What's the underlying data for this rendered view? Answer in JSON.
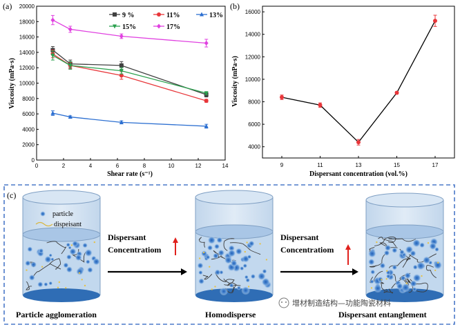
{
  "chart_data": [
    {
      "panel_label": "(a)",
      "type": "line",
      "xlabel": "Shear rate (s⁻¹)",
      "ylabel": "Viscosity (mPa·s)",
      "xlim": [
        0,
        14
      ],
      "ylim": [
        0,
        20000
      ],
      "x_ticks": [
        "0",
        "2",
        "4",
        "6",
        "8",
        "10",
        "12",
        "14"
      ],
      "y_ticks": [
        "0",
        "2000",
        "4000",
        "6000",
        "8000",
        "10000",
        "12000",
        "14000",
        "16000",
        "18000",
        "20000"
      ],
      "x": [
        1.2,
        2.5,
        6.3,
        12.6
      ],
      "series": [
        {
          "name": "9 %",
          "color": "#404040",
          "marker": "square",
          "values": [
            14300,
            12500,
            12300,
            8500
          ],
          "errors": [
            450,
            500,
            500,
            300
          ]
        },
        {
          "name": "11%",
          "color": "#e8363a",
          "marker": "circle",
          "values": [
            13800,
            12300,
            11000,
            7700
          ],
          "errors": [
            500,
            400,
            500,
            200
          ]
        },
        {
          "name": "13%",
          "color": "#2c6fd1",
          "marker": "triangle",
          "values": [
            6100,
            5600,
            4900,
            4400
          ],
          "errors": [
            300,
            150,
            200,
            250
          ]
        },
        {
          "name": "15%",
          "color": "#2aa04d",
          "marker": "triangle-down",
          "values": [
            13600,
            12300,
            11600,
            8700
          ],
          "errors": [
            600,
            500,
            400,
            200
          ]
        },
        {
          "name": "17%",
          "color": "#e040e0",
          "marker": "diamond",
          "values": [
            18200,
            17000,
            16100,
            15200
          ],
          "errors": [
            600,
            400,
            300,
            500
          ]
        }
      ]
    },
    {
      "panel_label": "(b)",
      "type": "line",
      "xlabel": "Dispersant concentration (vol.%)",
      "ylabel": "Viscosity (mPa·s)",
      "ylim": [
        3000,
        16500
      ],
      "categories": [
        "9",
        "11",
        "13",
        "15",
        "17"
      ],
      "y_ticks": [
        "4000",
        "6000",
        "8000",
        "10000",
        "12000",
        "14000",
        "16000"
      ],
      "values": [
        8400,
        7700,
        4400,
        8800,
        15200
      ],
      "errors": [
        200,
        200,
        250,
        100,
        500
      ],
      "line_color": "#000000",
      "marker_color": "#e8363a"
    }
  ],
  "panel_c": {
    "label": "(c)",
    "legend_particle": "particle",
    "legend_dispersant": "dispeisant",
    "arrow1_line1": "Dispersant",
    "arrow1_line2": "Concentratiom",
    "arrow2_line1": "Dispersant",
    "arrow2_line2": "Concentratiom",
    "state1": "Particle agglomeration",
    "state2": "Homodisperse",
    "state3": "Dispersant entanglement"
  },
  "watermark": "增材制造结构—功能陶瓷材料",
  "colors": {
    "beaker_fill": "#c9dcef",
    "liquid_top": "#a9c6e6",
    "particle": "#3a7fd0",
    "arrow_up": "#e0201c",
    "border_dash": "#4a78c8"
  }
}
